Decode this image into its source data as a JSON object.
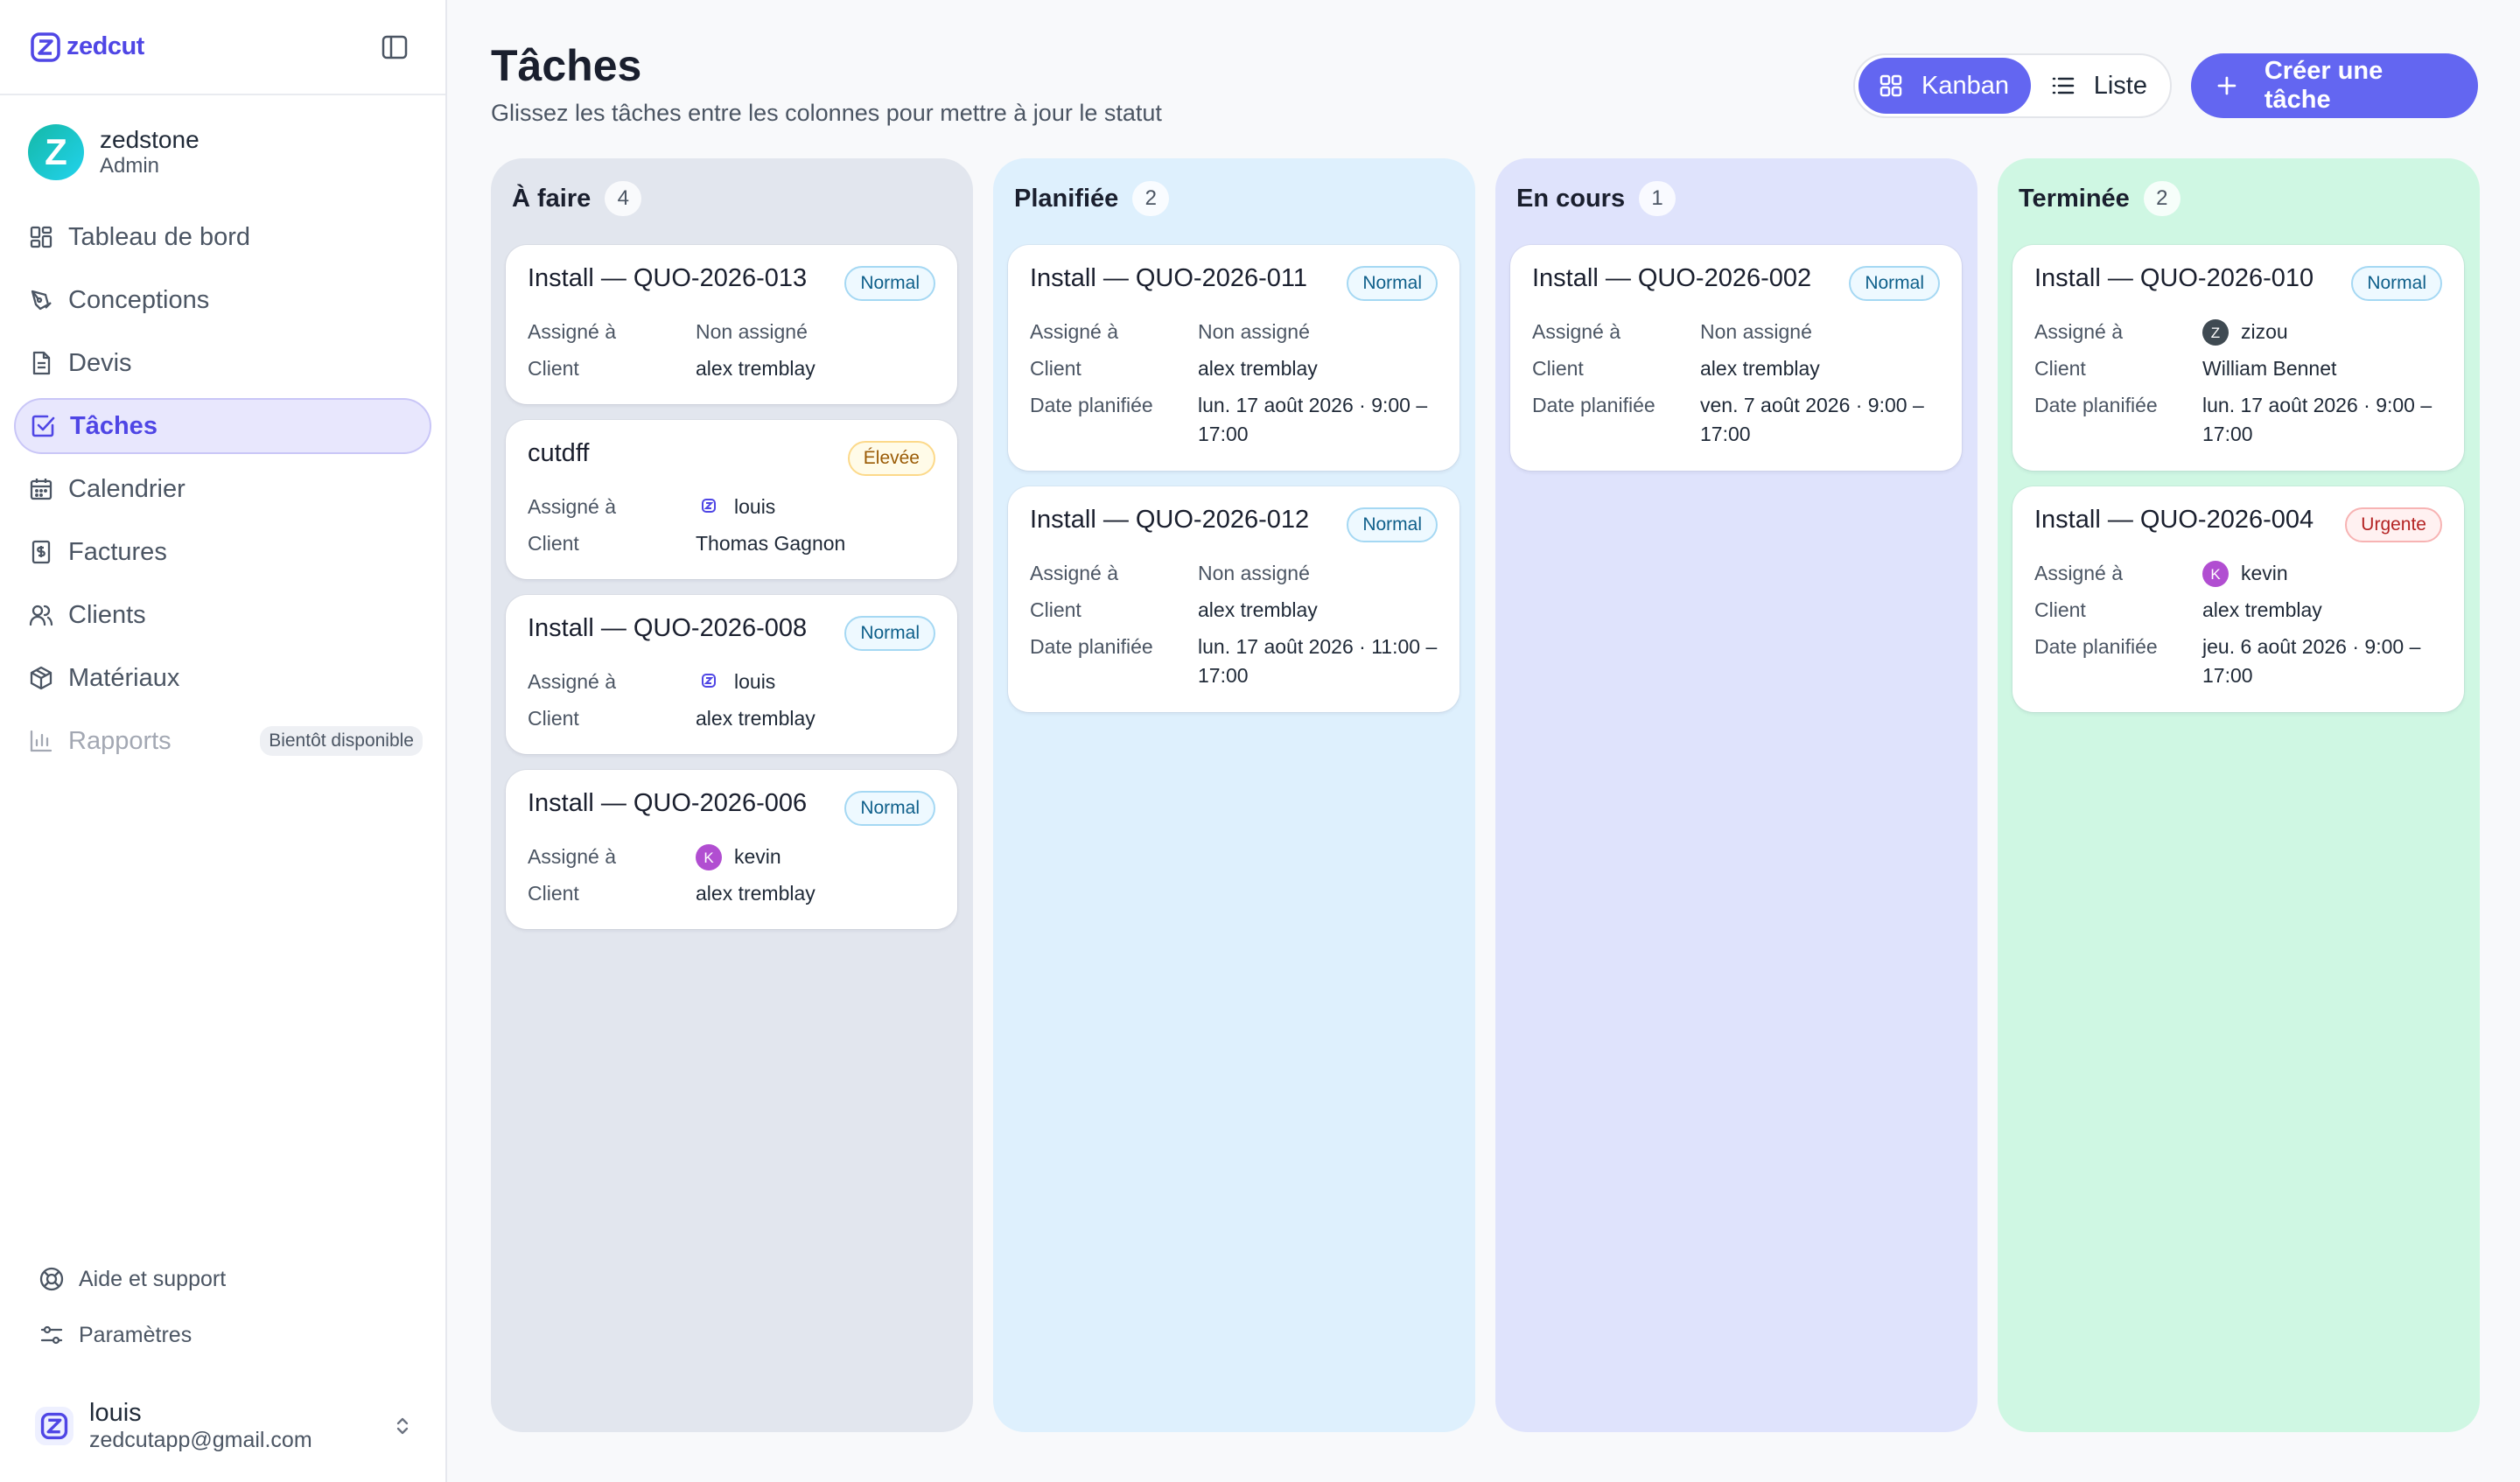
{
  "app": {
    "name": "zedcut"
  },
  "user": {
    "name": "zedstone",
    "role": "Admin",
    "avatar_letter": "Z"
  },
  "nav": [
    {
      "label": "Tableau de bord",
      "icon": "dashboard-icon"
    },
    {
      "label": "Conceptions",
      "icon": "pen-tool-icon"
    },
    {
      "label": "Devis",
      "icon": "file-text-icon"
    },
    {
      "label": "Tâches",
      "icon": "check-square-icon",
      "active": true
    },
    {
      "label": "Calendrier",
      "icon": "calendar-icon"
    },
    {
      "label": "Factures",
      "icon": "dollar-file-icon"
    },
    {
      "label": "Clients",
      "icon": "users-icon"
    },
    {
      "label": "Matériaux",
      "icon": "box-icon"
    },
    {
      "label": "Rapports",
      "icon": "bar-chart-icon",
      "disabled": true,
      "badge": "Bientôt disponible"
    }
  ],
  "footer_links": [
    {
      "label": "Aide et support",
      "icon": "lifebuoy-icon"
    },
    {
      "label": "Paramètres",
      "icon": "sliders-icon"
    }
  ],
  "account": {
    "name": "louis",
    "email": "zedcutapp@gmail.com"
  },
  "page": {
    "title": "Tâches",
    "subtitle": "Glissez les tâches entre les colonnes pour mettre à jour le statut"
  },
  "view_toggle": {
    "kanban": "Kanban",
    "list": "Liste",
    "selected": "Kanban"
  },
  "create_button": "Créer une tâche",
  "colors": {
    "accent": "#6366f1",
    "col_todo": "#e2e6ee",
    "col_planned": "#def0fd",
    "col_inprogress": "#dfe3fc",
    "col_done": "#cff7e3"
  },
  "labels": {
    "assigned": "Assigné à",
    "client": "Client",
    "planned_date": "Date planifiée"
  },
  "columns": [
    {
      "title": "À faire",
      "count": "4",
      "cards": [
        {
          "title": "Install — QUO-2026-013",
          "priority": "Normal",
          "assigned": "Non assigné",
          "client": "alex tremblay"
        },
        {
          "title": "cutdff",
          "priority": "Élevée",
          "assigned": "louis",
          "client": "Thomas Gagnon"
        },
        {
          "title": "Install — QUO-2026-008",
          "priority": "Normal",
          "assigned": "louis",
          "client": "alex tremblay"
        },
        {
          "title": "Install — QUO-2026-006",
          "priority": "Normal",
          "assigned": "kevin",
          "avatar_letter": "K",
          "client": "alex tremblay"
        }
      ]
    },
    {
      "title": "Planifiée",
      "count": "2",
      "cards": [
        {
          "title": "Install — QUO-2026-011",
          "priority": "Normal",
          "assigned": "Non assigné",
          "client": "alex tremblay",
          "date_line1": "lun. 17 août 2026 · 9:00 –",
          "date_line2": "17:00"
        },
        {
          "title": "Install — QUO-2026-012",
          "priority": "Normal",
          "assigned": "Non assigné",
          "client": "alex tremblay",
          "date_line1": "lun. 17 août 2026 · 11:00 –",
          "date_line2": "17:00"
        }
      ]
    },
    {
      "title": "En cours",
      "count": "1",
      "cards": [
        {
          "title": "Install — QUO-2026-002",
          "priority": "Normal",
          "assigned": "Non assigné",
          "client": "alex tremblay",
          "date_line1": "ven. 7 août 2026 · 9:00 –",
          "date_line2": "17:00"
        }
      ]
    },
    {
      "title": "Terminée",
      "count": "2",
      "cards": [
        {
          "title": "Install — QUO-2026-010",
          "priority": "Normal",
          "assigned": "zizou",
          "avatar_letter": "Z",
          "client": "William Bennet",
          "date_line1": "lun. 17 août 2026 · 9:00 –",
          "date_line2": "17:00"
        },
        {
          "title": "Install — QUO-2026-004",
          "priority": "Urgente",
          "assigned": "kevin",
          "avatar_letter": "K",
          "client": "alex tremblay",
          "date_line1": "jeu. 6 août 2026 · 9:00 –",
          "date_line2": "17:00"
        }
      ]
    }
  ]
}
